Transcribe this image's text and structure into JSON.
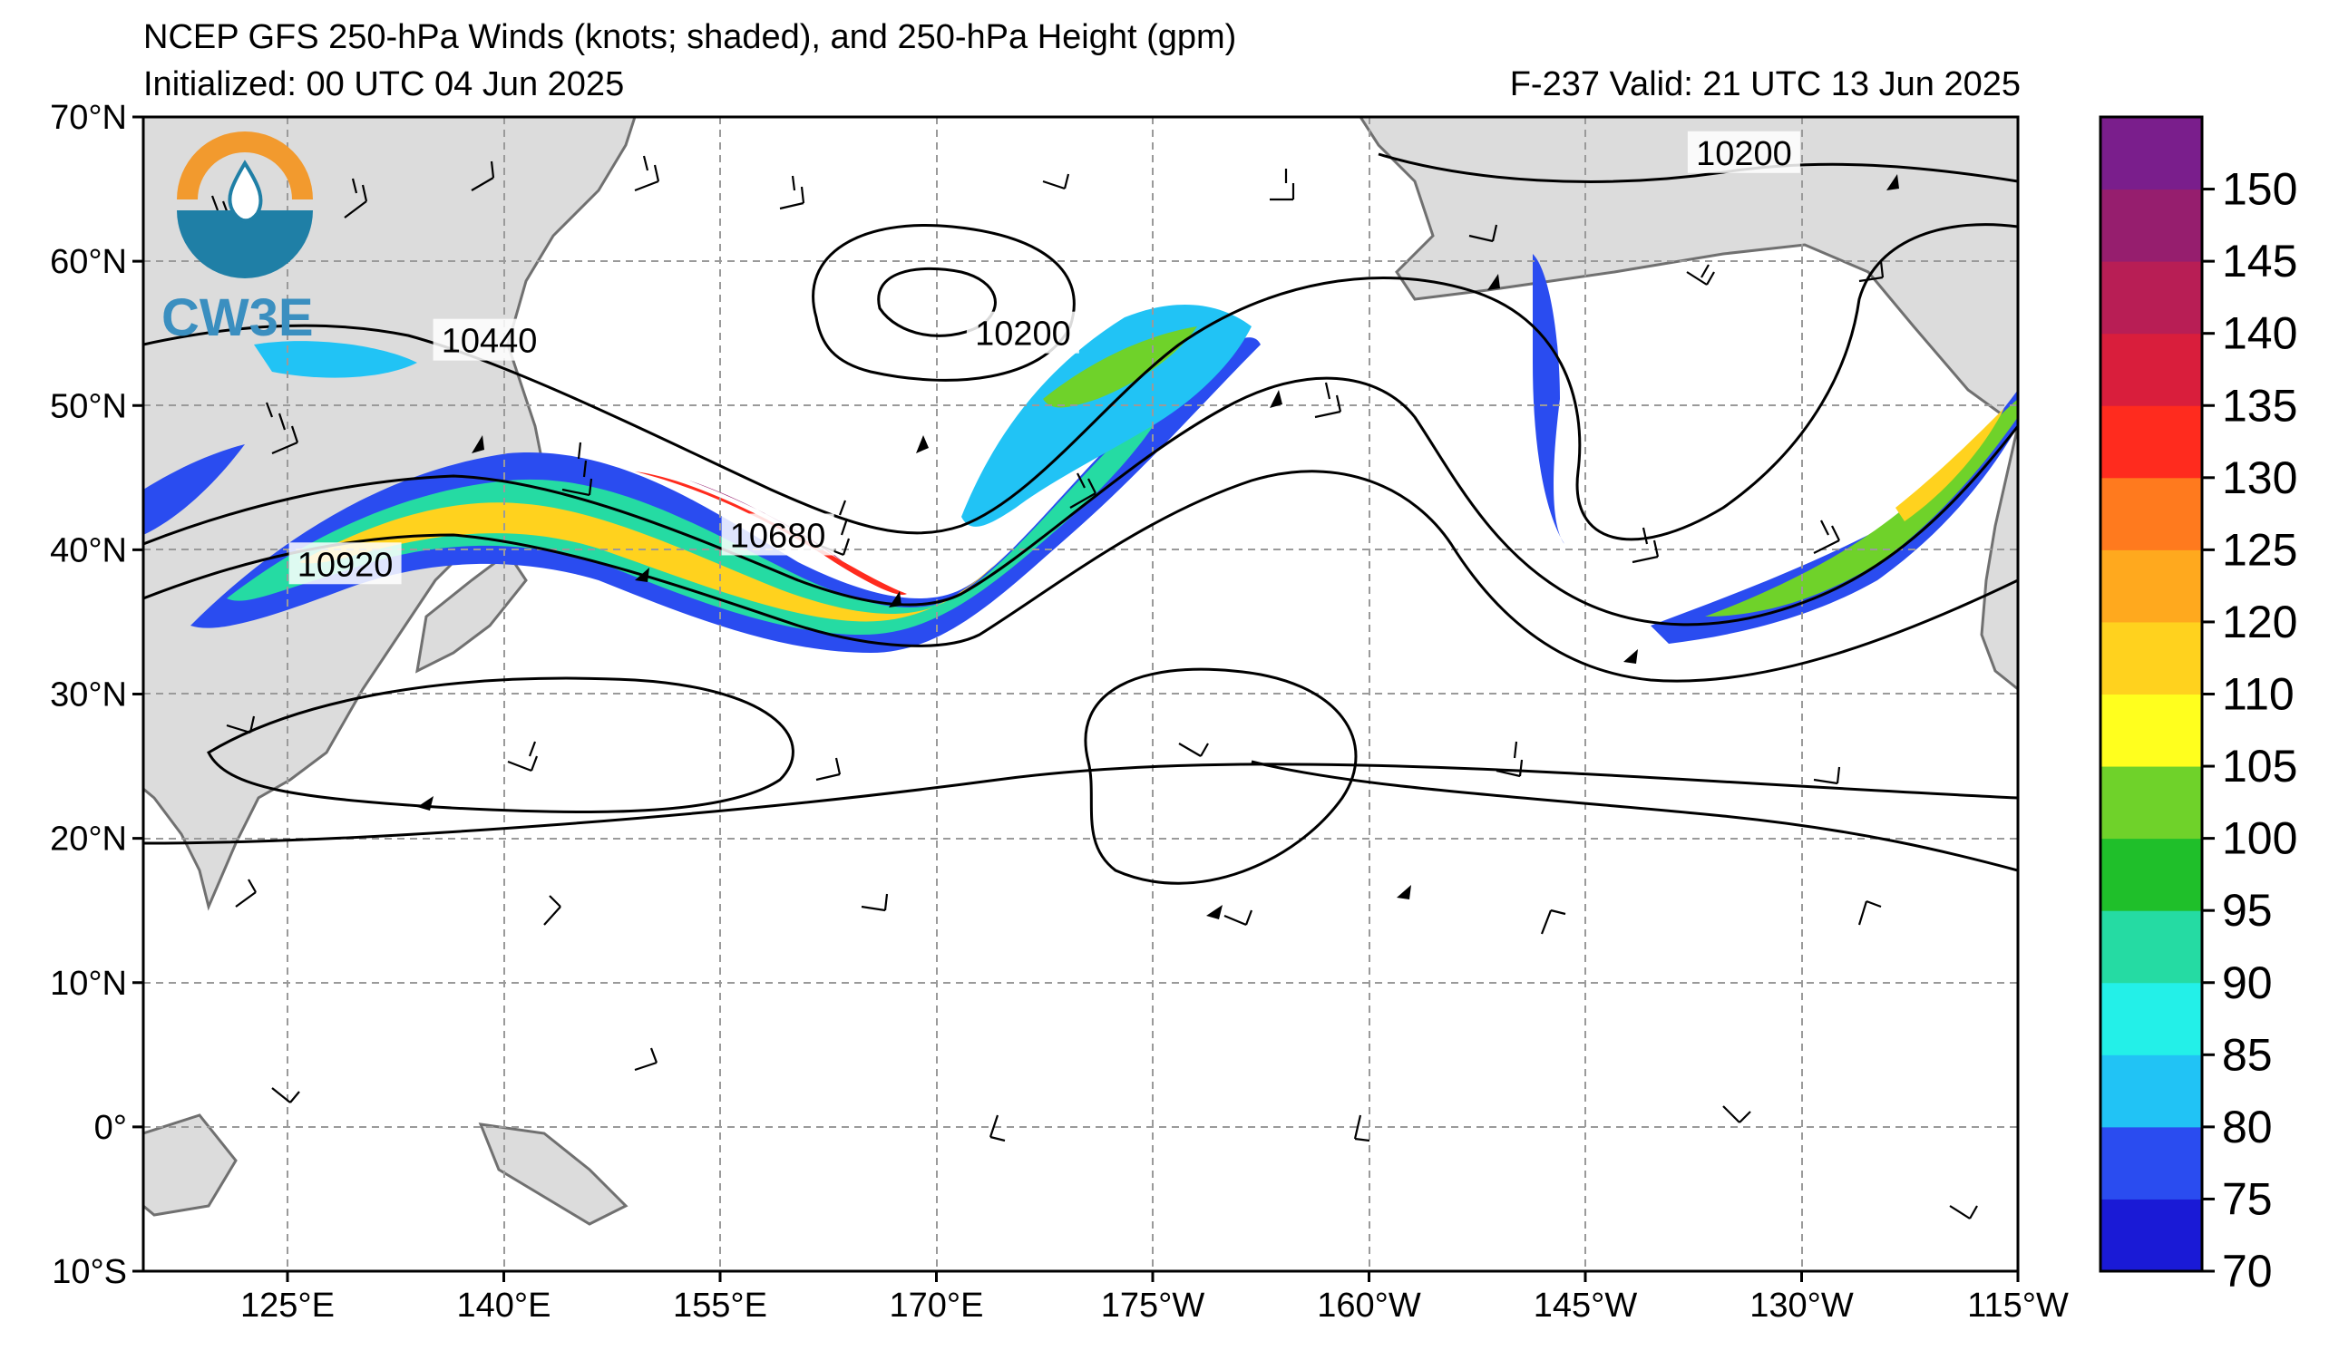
{
  "header": {
    "title": "NCEP GFS 250-hPa Winds (knots; shaded), and 250-hPa Height (gpm)",
    "initialized": "Initialized: 00 UTC 04 Jun 2025",
    "valid": "F-237  Valid: 21 UTC 13 Jun 2025"
  },
  "logo": {
    "text": "CW3E",
    "colors": {
      "orange": "#f29a2e",
      "teal": "#1f7fa6",
      "text": "#3b8fc0"
    }
  },
  "map": {
    "lat_labels": [
      "70°N",
      "60°N",
      "50°N",
      "40°N",
      "30°N",
      "20°N",
      "10°N",
      "0°",
      "10°S"
    ],
    "lon_labels": [
      "125°E",
      "140°E",
      "155°E",
      "170°E",
      "175°W",
      "160°W",
      "145°W",
      "130°W",
      "115°W"
    ],
    "lat_range": [
      -10,
      70
    ],
    "lon_range_east": [
      115,
      245
    ],
    "contour_labels": [
      {
        "text": "10200",
        "lon": 226,
        "lat": 67.5
      },
      {
        "text": "10440",
        "lon": 139,
        "lat": 54.5
      },
      {
        "text": "10200",
        "lon": 176,
        "lat": 55
      },
      {
        "text": "10680",
        "lon": 159,
        "lat": 41
      },
      {
        "text": "10920",
        "lon": 129,
        "lat": 39
      }
    ],
    "colors": {
      "land": "#dcdcdc",
      "coast": "#707070",
      "grid": "#9a9a9a"
    }
  },
  "colorbar": {
    "labels": [
      "70",
      "75",
      "80",
      "85",
      "90",
      "95",
      "100",
      "105",
      "110",
      "120",
      "125",
      "130",
      "135",
      "140",
      "145",
      "150"
    ],
    "colors": [
      "#1a1ad6",
      "#2a4cf0",
      "#21c3f5",
      "#23f0e8",
      "#25dba3",
      "#1fbf2a",
      "#6fd22a",
      "#ffff1e",
      "#ffd21e",
      "#ffa91e",
      "#ff7a1e",
      "#ff2b1e",
      "#d91e3c",
      "#b81e55",
      "#961e6e",
      "#7a1e8c"
    ]
  }
}
